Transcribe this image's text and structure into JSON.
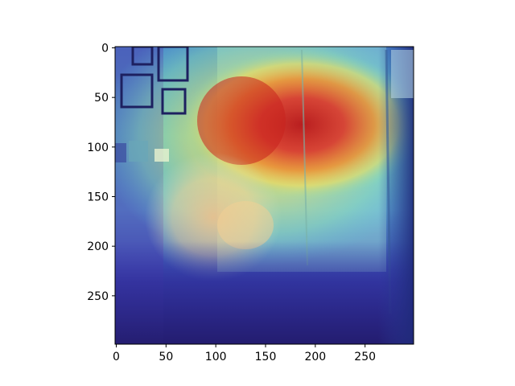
{
  "chart_data": {
    "type": "heatmap",
    "title": "",
    "xlabel": "",
    "ylabel": "",
    "image_description": "Grad-CAM style attention heatmap (jet colormap, semi-transparent) overlaid on a photo of a golden retriever sitting in front of a wall with picture frames, a door and a person behind",
    "colormap": "jet",
    "xlim": [
      0,
      299
    ],
    "ylim": [
      299,
      0
    ],
    "y_inverted": true,
    "x_ticks": [
      0,
      50,
      100,
      150,
      200,
      250
    ],
    "y_ticks": [
      0,
      50,
      100,
      150,
      200,
      250
    ],
    "hotspot": {
      "x": 200,
      "y": 75,
      "label": "peak activation (red)"
    },
    "hotspot_secondary": {
      "x": 115,
      "y": 85
    },
    "grid": false,
    "colors": {
      "background": "#ffffff",
      "axes": "#000000",
      "frame_blue": "#2a2f7a",
      "door_light": "#a9e1de"
    }
  }
}
